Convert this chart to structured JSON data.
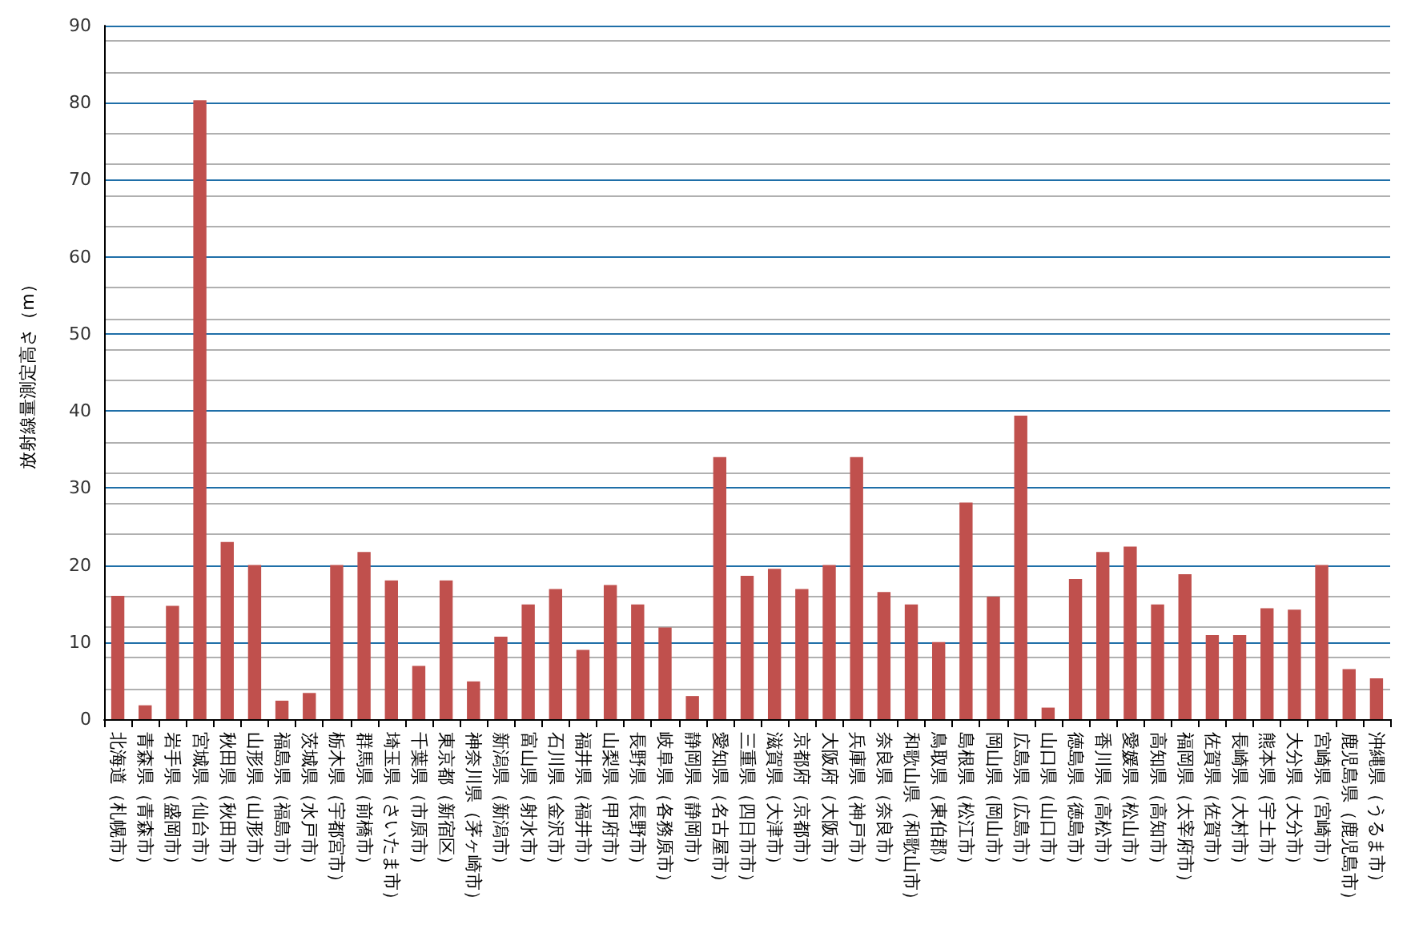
{
  "chart_data": {
    "type": "bar",
    "ylabel": "放射線量測定高さ（m）",
    "categories": [
      "北海道（札幌市）",
      "青森県（青森市）",
      "岩手県（盛岡市）",
      "宮城県（仙台市）",
      "秋田県（秋田市）",
      "山形県（山形市）",
      "福島県（福島市）",
      "茨城県（水戸市）",
      "栃木県（宇都宮市）",
      "群馬県（前橋市）",
      "埼玉県（さいたま市）",
      "千葉県（市原市）",
      "東京都（新宿区）",
      "神奈川県（茅ヶ崎市）",
      "新潟県（新潟市）",
      "富山県（射水市）",
      "石川県（金沢市）",
      "福井県（福井市）",
      "山梨県（甲府市）",
      "長野県（長野市）",
      "岐阜県（各務原市）",
      "静岡県（静岡市）",
      "愛知県（名古屋市）",
      "三重県（四日市市）",
      "滋賀県（大津市）",
      "京都府（京都市）",
      "大阪府（大阪市）",
      "兵庫県（神戸市）",
      "奈良県（奈良市）",
      "和歌山県（和歌山市）",
      "鳥取県（東伯郡）",
      "島根県（松江市）",
      "岡山県（岡山市）",
      "広島県（広島市）",
      "山口県（山口市）",
      "徳島県（徳島市）",
      "香川県（高松市）",
      "愛媛県（松山市）",
      "高知県（高知市）",
      "福岡県（太宰府市）",
      "佐賀県（佐賀市）",
      "長崎県（大村市）",
      "熊本県（宇土市）",
      "大分県（大分市）",
      "宮崎県（宮崎市）",
      "鹿児島県（鹿児島市）",
      "沖縄県（うるま市）"
    ],
    "values": [
      16.0,
      1.8,
      14.7,
      80.3,
      23.0,
      20.0,
      2.4,
      3.4,
      20.0,
      21.7,
      18.0,
      6.9,
      18.0,
      4.9,
      10.7,
      14.9,
      16.9,
      9.0,
      17.4,
      14.9,
      11.9,
      3.0,
      34.0,
      18.6,
      19.5,
      16.9,
      20.0,
      34.0,
      16.5,
      14.9,
      10.0,
      28.1,
      15.9,
      39.4,
      1.5,
      18.2,
      21.7,
      22.4,
      14.9,
      18.8,
      10.9,
      10.9,
      14.4,
      14.2,
      20.0,
      6.5,
      5.3
    ],
    "color": "#c0504d",
    "ylim": [
      0,
      90
    ],
    "yticks": [
      0,
      10,
      20,
      30,
      40,
      50,
      60,
      70,
      80,
      90
    ],
    "grid": true
  }
}
